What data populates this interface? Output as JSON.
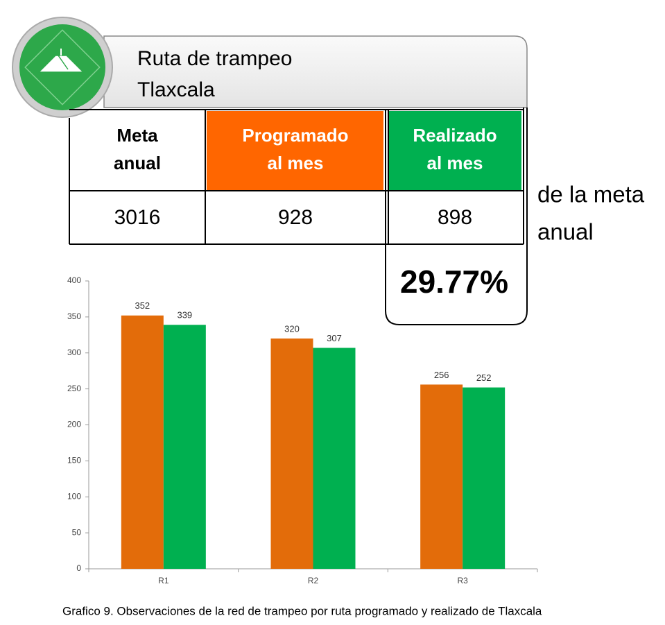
{
  "header": {
    "title_lines": [
      "Ruta de trampeo",
      "Tlaxcala"
    ]
  },
  "table": {
    "headers": [
      [
        "Meta",
        "anual"
      ],
      [
        "Programado",
        "al mes"
      ],
      [
        "Realizado",
        "al mes"
      ]
    ],
    "values": [
      3016,
      928,
      898
    ]
  },
  "percentage": "29.77%",
  "note_lines": [
    "de la meta",
    "anual"
  ],
  "chart_data": {
    "type": "bar",
    "categories": [
      "R1",
      "R2",
      "R3"
    ],
    "series": [
      {
        "color": "#e36c0a",
        "values": [
          352,
          320,
          256
        ]
      },
      {
        "color": "#00b050",
        "values": [
          339,
          307,
          252
        ]
      }
    ],
    "ylim": [
      0,
      400
    ],
    "yticks": [
      0,
      50,
      100,
      150,
      200,
      250,
      300,
      350,
      400
    ]
  },
  "caption": "Grafico 9. Observaciones de la red de trampeo por ruta programado y realizado de Tlaxcala"
}
